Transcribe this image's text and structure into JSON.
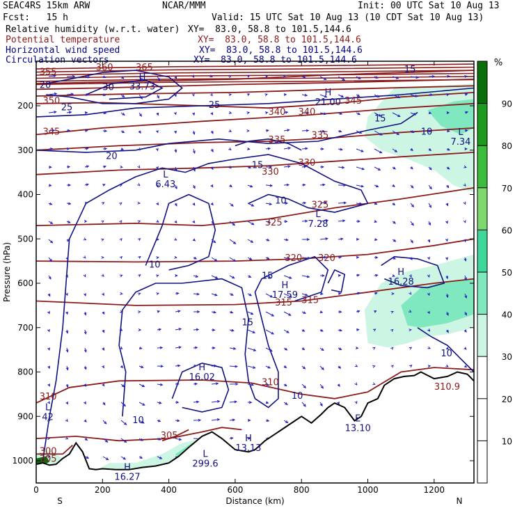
{
  "header": {
    "model": "SEAC4RS 15km ARW",
    "center": "NCAR/MMM",
    "init": "Init: 00 UTC Sat 10 Aug 13",
    "fcst": "Fcst:   15 h",
    "valid": "Valid: 15 UTC Sat 10 Aug 13 (10 CDT Sat 10 Aug 13)",
    "fields": [
      {
        "label": "Relative humidity (w.r.t. water)",
        "xy": "XY=  83.0, 58.8 to 101.5,144.6",
        "color": "#000000"
      },
      {
        "label": "Potential temperature",
        "xy": "XY=  83.0, 58.8 to 101.5,144.6",
        "color": "#8b1a1a"
      },
      {
        "label": "Horizontal wind speed",
        "xy": "XY=  83.0, 58.8 to 101.5,144.6",
        "color": "#000080"
      },
      {
        "label": "Circulation vectors",
        "xy": "XY=  83.0, 58.8 to 101.5,144.6",
        "color": "#000080"
      }
    ]
  },
  "chart_data": {
    "type": "heatmap",
    "xlabel": "Distance (km)",
    "ylabel": "Pressure (hPa)",
    "x_ticks": [
      0,
      200,
      400,
      600,
      800,
      1000,
      1200
    ],
    "y_ticks": [
      200,
      300,
      400,
      500,
      600,
      700,
      800,
      900,
      1000
    ],
    "xlim": [
      0,
      1320
    ],
    "ylim": [
      1050,
      100
    ],
    "x_end_labels": {
      "left": "S",
      "right": "N"
    },
    "colorbar": {
      "unit": "%",
      "ticks": [
        10,
        20,
        30,
        40,
        50,
        60,
        70,
        80,
        90
      ],
      "bands": [
        {
          "from": 0,
          "to": 30,
          "color": "#ffffff"
        },
        {
          "from": 30,
          "to": 40,
          "color": "#cdf5e3"
        },
        {
          "from": 40,
          "to": 50,
          "color": "#7fe8bf"
        },
        {
          "from": 50,
          "to": 60,
          "color": "#3fd89a"
        },
        {
          "from": 60,
          "to": 70,
          "color": "#7ed86e"
        },
        {
          "from": 70,
          "to": 80,
          "color": "#3cbc3c"
        },
        {
          "from": 80,
          "to": 90,
          "color": "#1e9a1e"
        },
        {
          "from": 90,
          "to": 100,
          "color": "#0a6e0a"
        }
      ]
    },
    "theta_labels": [
      {
        "text": "350",
        "x": 20,
        "p": 195
      },
      {
        "text": "345",
        "x": 20,
        "p": 265
      },
      {
        "text": "340",
        "x": 700,
        "p": 220
      },
      {
        "text": "340",
        "x": 790,
        "p": 220
      },
      {
        "text": "335",
        "x": 700,
        "p": 283
      },
      {
        "text": "335",
        "x": 830,
        "p": 273
      },
      {
        "text": "330",
        "x": 680,
        "p": 355
      },
      {
        "text": "330",
        "x": 790,
        "p": 335
      },
      {
        "text": "325",
        "x": 690,
        "p": 470
      },
      {
        "text": "325",
        "x": 830,
        "p": 430
      },
      {
        "text": "320",
        "x": 750,
        "p": 550
      },
      {
        "text": "320",
        "x": 850,
        "p": 550
      },
      {
        "text": "315",
        "x": 720,
        "p": 650
      },
      {
        "text": "315",
        "x": 800,
        "p": 645
      },
      {
        "text": "310",
        "x": 10,
        "p": 862
      },
      {
        "text": "310",
        "x": 680,
        "p": 830
      },
      {
        "text": "310.9",
        "x": 1200,
        "p": 840
      },
      {
        "text": "305",
        "x": 375,
        "p": 950
      },
      {
        "text": "300",
        "x": 10,
        "p": 985
      },
      {
        "text": "305",
        "x": 10,
        "p": 1002
      },
      {
        "text": "345",
        "x": 930,
        "p": 195
      },
      {
        "text": "360",
        "x": 180,
        "p": 120
      },
      {
        "text": "365",
        "x": 300,
        "p": 120
      },
      {
        "text": "355",
        "x": 10,
        "p": 130
      }
    ],
    "wind_labels": [
      {
        "text": "20",
        "x": 10,
        "p": 160
      },
      {
        "text": "30",
        "x": 200,
        "p": 165
      },
      {
        "text": "25",
        "x": 75,
        "p": 210
      },
      {
        "text": "25",
        "x": 520,
        "p": 205
      },
      {
        "text": "20",
        "x": 210,
        "p": 320
      },
      {
        "text": "15",
        "x": 650,
        "p": 340
      },
      {
        "text": "15",
        "x": 1020,
        "p": 235
      },
      {
        "text": "10",
        "x": 1160,
        "p": 265
      },
      {
        "text": "10",
        "x": 720,
        "p": 420
      },
      {
        "text": "10",
        "x": 340,
        "p": 565
      },
      {
        "text": "15",
        "x": 680,
        "p": 590
      },
      {
        "text": "15",
        "x": 620,
        "p": 695
      },
      {
        "text": "10",
        "x": 770,
        "p": 860
      },
      {
        "text": "10",
        "x": 1220,
        "p": 765
      },
      {
        "text": "10",
        "x": 290,
        "p": 915
      },
      {
        "text": "15",
        "x": 1110,
        "p": 125
      }
    ],
    "extrema": [
      {
        "kind": "H",
        "value": "33.73",
        "x": 320,
        "p": 160
      },
      {
        "kind": "H",
        "value": "21.00",
        "x": 880,
        "p": 195
      },
      {
        "kind": "L",
        "value": "7.34",
        "x": 1280,
        "p": 285
      },
      {
        "kind": "L",
        "value": "6.43",
        "x": 390,
        "p": 380
      },
      {
        "kind": "L",
        "value": "7.28",
        "x": 850,
        "p": 470
      },
      {
        "kind": "H",
        "value": "16.28",
        "x": 1100,
        "p": 600
      },
      {
        "kind": "H",
        "value": "17.59",
        "x": 750,
        "p": 630
      },
      {
        "kind": "H",
        "value": "16.02",
        "x": 500,
        "p": 815
      },
      {
        "kind": "L",
        "value": "42",
        "x": 35,
        "p": 905
      },
      {
        "kind": "E",
        "value": "13.10",
        "x": 970,
        "p": 930
      },
      {
        "kind": "H",
        "value": "13.13",
        "x": 640,
        "p": 975
      },
      {
        "kind": "L",
        "value": "299.6",
        "x": 510,
        "p": 1010
      },
      {
        "kind": "H",
        "value": "16.27",
        "x": 275,
        "p": 1040
      }
    ]
  }
}
